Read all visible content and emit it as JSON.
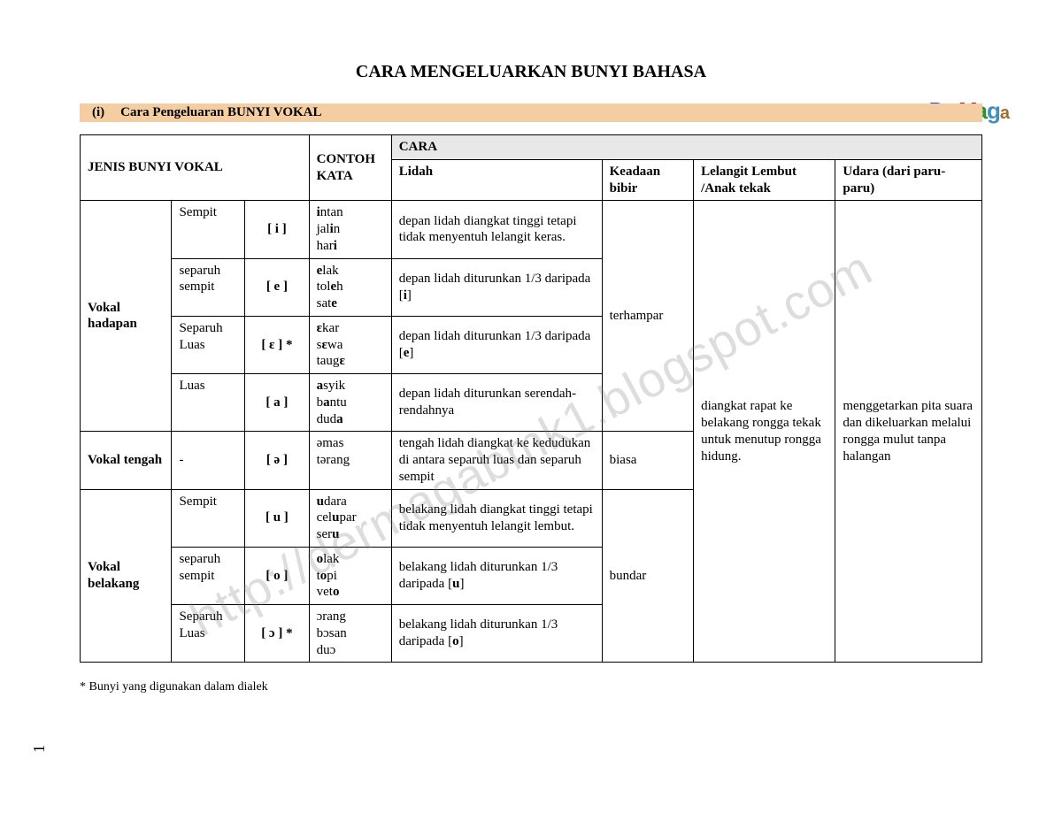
{
  "title": "CARA MENGELUARKAN BUNYI BAHASA",
  "section": {
    "num": "(i)",
    "text": "Cara Pengeluaran BUNYI VOKAL"
  },
  "watermark": "http://dermagabmk1.blogspot.com",
  "footnote": "* Bunyi yang digunakan dalam dialek",
  "page_number": "1",
  "headers": {
    "jenis": "JENIS BUNYI VOKAL",
    "contoh": "CONTOH KATA",
    "cara": "CARA",
    "lidah": "Lidah",
    "bibir": "Keadaan bibir",
    "lelangit": "Lelangit Lembut /Anak tekak",
    "udara": "Udara (dari paru-paru)"
  },
  "groups": {
    "hadapan": "Vokal hadapan",
    "tengah": "Vokal tengah",
    "belakang": "Vokal belakang"
  },
  "rows": {
    "i": {
      "sub": "Sempit",
      "sym": "[ i ]",
      "k": [
        "intan",
        "jalin",
        "hari"
      ],
      "kb": [
        0,
        3,
        3
      ],
      "lidah": "depan lidah diangkat tinggi tetapi tidak menyentuh lelangit keras."
    },
    "e": {
      "sub": "separuh sempit",
      "sym": "[ e ]",
      "k": [
        "elak",
        "toleh",
        "sate"
      ],
      "kb": [
        0,
        3,
        3
      ],
      "lidah": "depan lidah diturunkan 1/3 daripada [i]",
      "lb": "i"
    },
    "eps": {
      "sub": "Separuh Luas",
      "sym": "[ ɛ ] *",
      "k": [
        "ɛkar",
        "sɛwa",
        "taugɛ"
      ],
      "kb": [
        0,
        1,
        4
      ],
      "lidah": "depan lidah diturunkan 1/3 daripada [e]",
      "lb": "e"
    },
    "a": {
      "sub": "Luas",
      "sym": "[ a ]",
      "k": [
        "asyik",
        "bantu",
        "duda"
      ],
      "kb": [
        0,
        1,
        3
      ],
      "lidah": "depan lidah diturunkan serendah-rendahnya"
    },
    "schwa": {
      "sub": "-",
      "sym": "[ ə ]",
      "k": [
        "əmas",
        "tərang"
      ],
      "kb": [
        -1,
        -1
      ],
      "lidah": "tengah lidah diangkat ke kedudukan di antara separuh luas dan separuh sempit"
    },
    "u": {
      "sub": "Sempit",
      "sym": "[ u ]",
      "k": [
        "udara",
        "celupar",
        "seru"
      ],
      "kb": [
        0,
        3,
        3
      ],
      "lidah": "belakang lidah diangkat tinggi tetapi tidak menyentuh lelangit lembut."
    },
    "o": {
      "sub": "separuh sempit",
      "sym": "[ o ]",
      "k": [
        "olak",
        "topi",
        "veto"
      ],
      "kb": [
        0,
        1,
        3
      ],
      "lidah": "belakang lidah diturunkan 1/3  daripada [u]",
      "lb": "u"
    },
    "open_o": {
      "sub": "Separuh Luas",
      "sym": "[ ɔ ] *",
      "k": [
        "ɔrang",
        "bɔsan",
        "duɔ"
      ],
      "kb": [
        -1,
        -1,
        -1
      ],
      "lidah": "belakang lidah diturunkan 1/3  daripada [o]",
      "lb": "o"
    }
  },
  "bibir": {
    "hadapan": "terhampar",
    "tengah": "biasa",
    "belakang": "bundar"
  },
  "lelangit_text": "diangkat rapat ke belakang rongga tekak untuk menutup rongga hidung.",
  "udara_text": "menggetarkan pita suara dan dikeluarkan melalui rongga mulut tanpa halangan",
  "logo": "DerMaga"
}
